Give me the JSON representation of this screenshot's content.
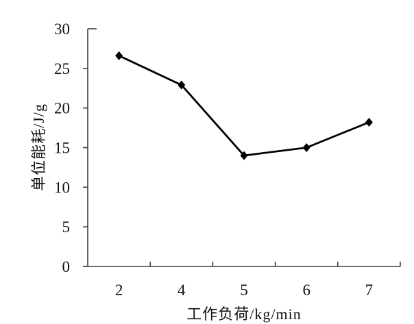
{
  "chart_data": {
    "type": "line",
    "categories": [
      "2",
      "4",
      "5",
      "6",
      "7"
    ],
    "values": [
      26.6,
      22.9,
      14.0,
      15.0,
      18.2
    ],
    "title": "",
    "xlabel": "工作负荷/kg/min",
    "ylabel": "单位能耗/J/g",
    "ylim": [
      0,
      30
    ],
    "yticks": [
      0,
      5,
      10,
      15,
      20,
      25,
      30
    ],
    "grid": false,
    "legend": false,
    "marker": "diamond",
    "colors": {
      "series": "#000000",
      "axis": "#3c3c3c",
      "background": "#ffffff"
    }
  }
}
